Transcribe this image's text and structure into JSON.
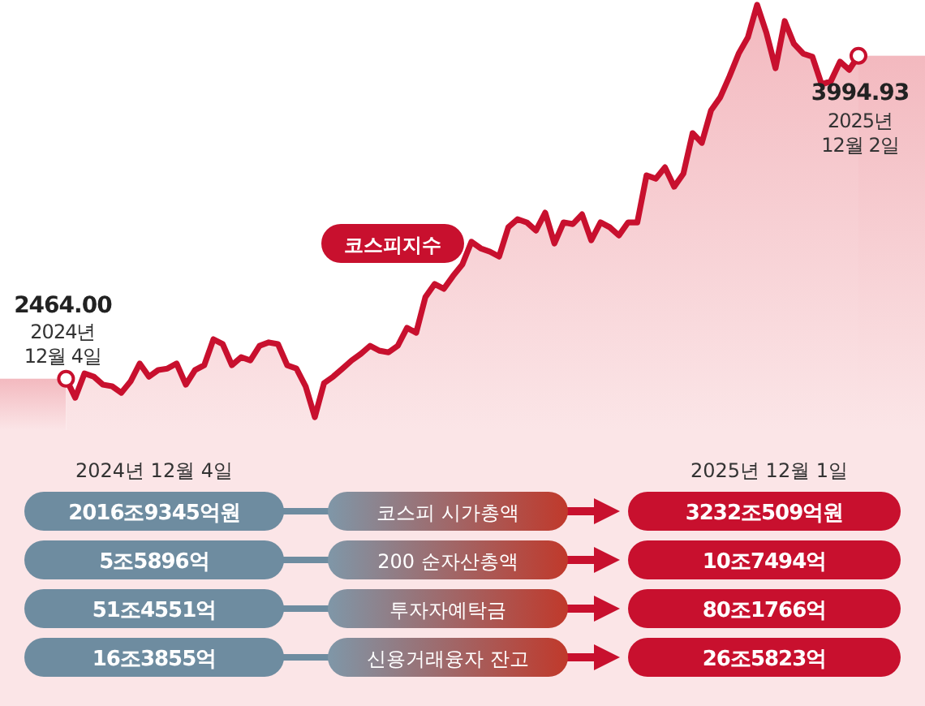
{
  "chart_data": {
    "type": "area",
    "categories": [
      null,
      null,
      null,
      null,
      null,
      null,
      null,
      null,
      null,
      null,
      null,
      null,
      null,
      null,
      null,
      null,
      null,
      null,
      null,
      null,
      null,
      null,
      null,
      null,
      null,
      null,
      null,
      null,
      null,
      null,
      null,
      null,
      null,
      null,
      null,
      null,
      null,
      null,
      null,
      null,
      null,
      null,
      null,
      null,
      null,
      null,
      null,
      null,
      null,
      null,
      null,
      null,
      null,
      null,
      null,
      null,
      null,
      null,
      null,
      null,
      null,
      null,
      null,
      null,
      null,
      null,
      null,
      null,
      null,
      null,
      null,
      null,
      null,
      null,
      null,
      null,
      null,
      null,
      null,
      null,
      null,
      null,
      null,
      null,
      null,
      null,
      null
    ],
    "series": [
      {
        "name": "코스피지수",
        "color": "#c8102e",
        "values": [
          2464.0,
          2374,
          2489,
          2474,
          2436,
          2428,
          2397,
          2451,
          2536,
          2474,
          2505,
          2512,
          2536,
          2436,
          2505,
          2528,
          2651,
          2628,
          2528,
          2566,
          2551,
          2620,
          2636,
          2628,
          2528,
          2512,
          2428,
          2282,
          2443,
          2474,
          2512,
          2551,
          2582,
          2620,
          2597,
          2589,
          2620,
          2705,
          2682,
          2851,
          2913,
          2890,
          2951,
          3005,
          3113,
          3082,
          3066,
          3043,
          3182,
          3220,
          3205,
          3166,
          3251,
          3105,
          3205,
          3197,
          3243,
          3120,
          3205,
          3182,
          3143,
          3205,
          3205,
          3428,
          3412,
          3466,
          3374,
          3436,
          3628,
          3582,
          3736,
          3798,
          3897,
          4005,
          4082,
          4236,
          4105,
          3936,
          4159,
          4051,
          4005,
          3990,
          3859,
          3874,
          3967,
          3928,
          3994.93
        ],
        "value_labels": [
          "2464.00",
          null,
          null,
          null,
          null,
          null,
          null,
          null,
          null,
          null,
          null,
          null,
          null,
          null,
          null,
          null,
          null,
          null,
          null,
          null,
          null,
          null,
          null,
          null,
          null,
          null,
          null,
          null,
          null,
          null,
          null,
          null,
          null,
          null,
          null,
          null,
          null,
          null,
          null,
          null,
          null,
          null,
          null,
          null,
          null,
          null,
          null,
          null,
          null,
          null,
          null,
          null,
          null,
          null,
          null,
          null,
          null,
          null,
          null,
          null,
          null,
          null,
          null,
          null,
          null,
          null,
          null,
          null,
          null,
          null,
          null,
          null,
          null,
          null,
          null,
          null,
          null,
          null,
          null,
          null,
          null,
          null,
          null,
          null,
          null,
          null,
          "3994.93"
        ]
      }
    ],
    "annotations": [
      "2024년 12월 4일",
      "2025년 12월 2일",
      "2024년 12월 4일",
      "2025년 12월 1일",
      "2016조9345억원",
      "코스피 시가총액",
      "3232조509억원",
      "5조5896억",
      "200 순자산총액",
      "10조7494억",
      "51조4551억",
      "투자자예탁금",
      "80조1766억",
      "16조3855억",
      "신용거래융자 잔고",
      "26조5823억"
    ]
  }
}
